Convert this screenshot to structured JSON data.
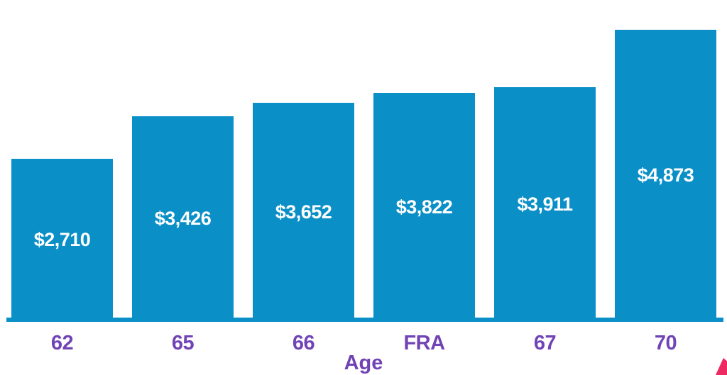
{
  "chart_data": {
    "type": "bar",
    "title": "",
    "xlabel": "Age",
    "ylabel": "",
    "categories": [
      "62",
      "65",
      "66",
      "FRA",
      "67",
      "70"
    ],
    "values": [
      2710,
      3426,
      3652,
      3822,
      3911,
      4873
    ],
    "value_labels": [
      "$2,710",
      "$3,426",
      "$3,652",
      "$3,822",
      "$3,911",
      "$4,873"
    ],
    "ylim": [
      0,
      4873
    ],
    "grid": false,
    "legend": false,
    "value_label_position": "inside-center",
    "category_label_position": "below-axis"
  },
  "colors": {
    "background": "#FFFFFF",
    "bar": "#0A8FC7",
    "axis_line": "#0A8FC7",
    "value_label": "#FFFFFF",
    "category_label": "#7143B5",
    "x_title": "#7143B5",
    "corner_accent": "#EE2A63"
  }
}
